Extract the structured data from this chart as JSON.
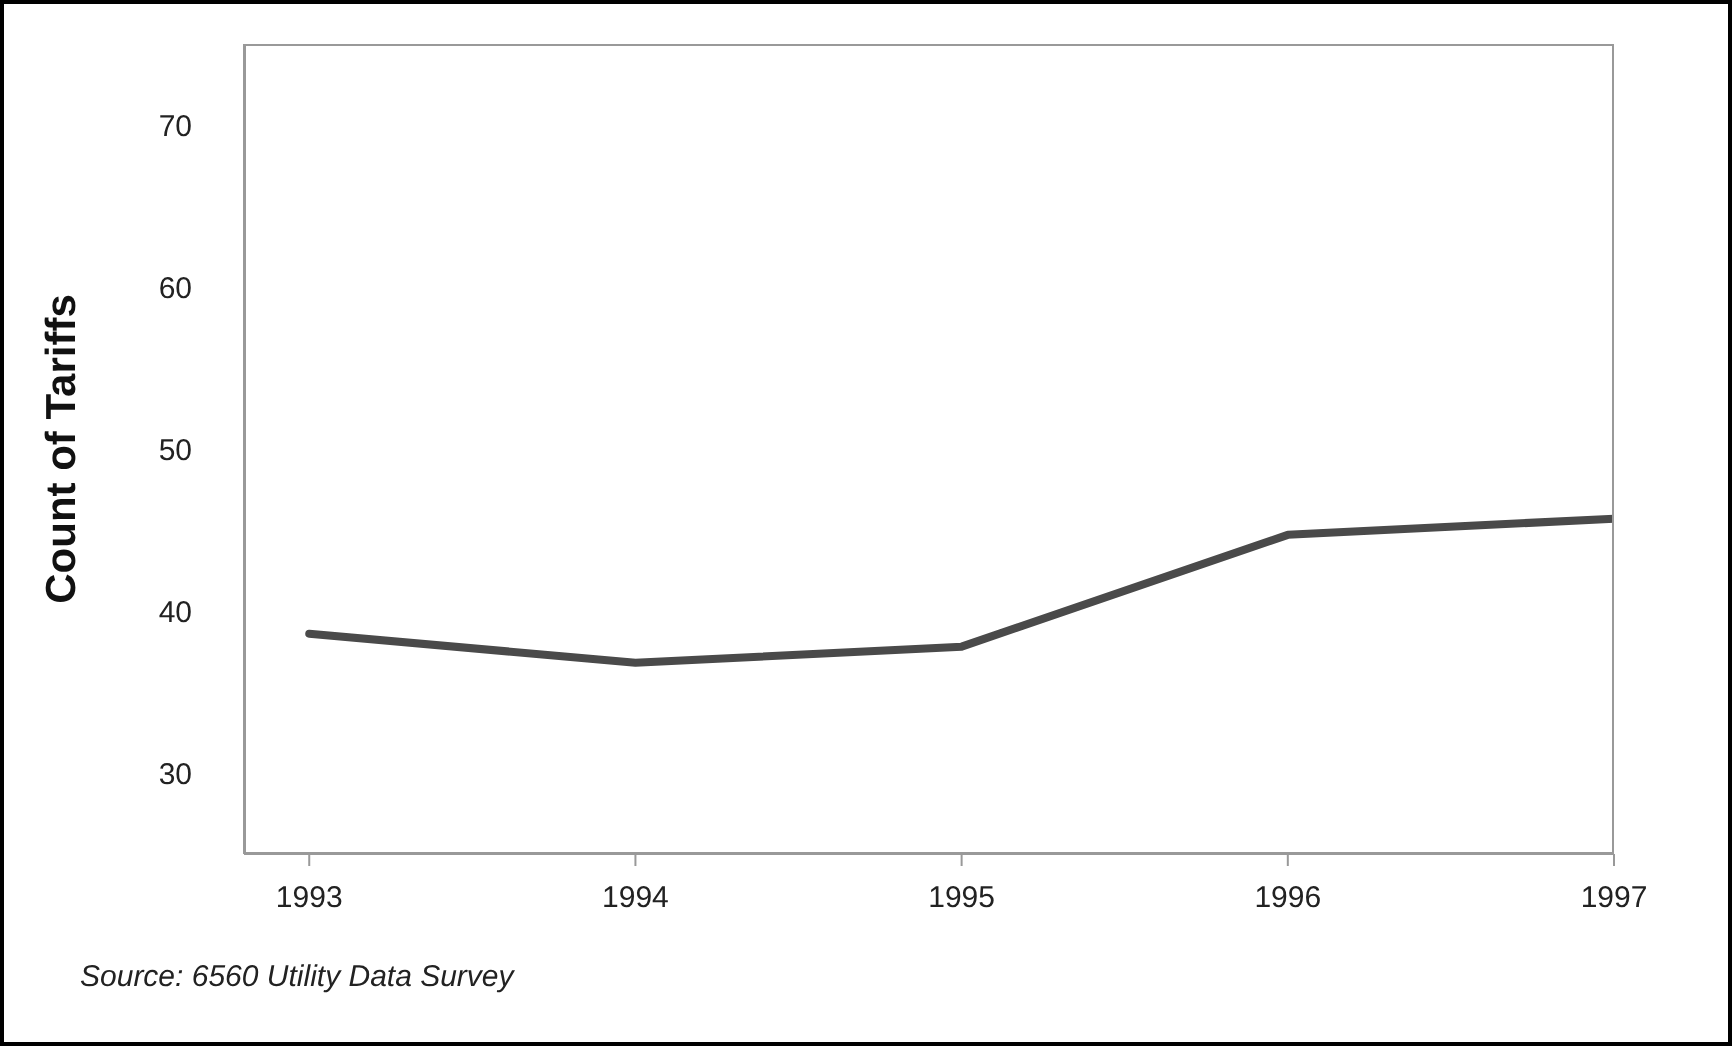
{
  "chart_data": {
    "type": "line",
    "ylabel": "Count of Tariffs",
    "annotations": [
      "Source: 6560 Utility Data Survey"
    ],
    "x": [
      1993,
      1994,
      1995,
      1996,
      1997
    ],
    "series": [
      {
        "color": "#4a4a4a",
        "values": [
          38.6,
          36.8,
          37.8,
          44.7,
          45.7
        ]
      }
    ],
    "xlim": [
      1992.8,
      1997
    ],
    "xticks": [
      1993,
      1994,
      1995,
      1996,
      1997
    ],
    "ylim": [
      25,
      75
    ],
    "yticks": [
      30,
      40,
      50,
      60,
      70
    ],
    "grid": false,
    "legend": false,
    "marker": "none",
    "line_style": "solid"
  }
}
